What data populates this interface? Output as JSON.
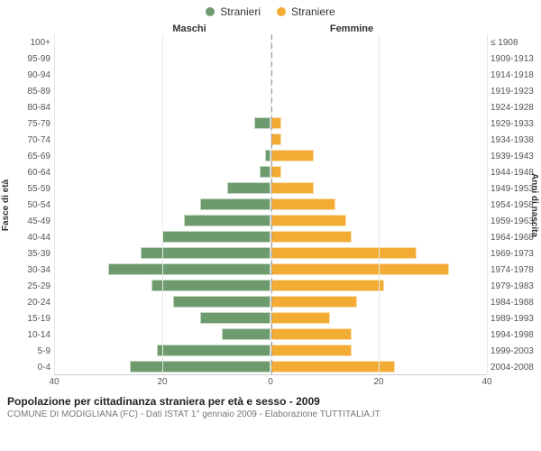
{
  "legend": {
    "male": {
      "label": "Stranieri",
      "color": "#6d9b6d"
    },
    "female": {
      "label": "Straniere",
      "color": "#f2ac33"
    }
  },
  "headers": {
    "left": "Maschi",
    "right": "Femmine"
  },
  "axis_labels": {
    "left": "Fasce di età",
    "right": "Anni di nascita"
  },
  "xaxis": {
    "max": 40,
    "ticks": [
      40,
      20,
      0,
      20,
      40
    ]
  },
  "title": "Popolazione per cittadinanza straniera per età e sesso - 2009",
  "subtitle": "COMUNE DI MODIGLIANA (FC) - Dati ISTAT 1° gennaio 2009 - Elaborazione TUTTITALIA.IT",
  "chart": {
    "type": "population-pyramid",
    "background_color": "#ffffff",
    "grid_color": "#e6e6e6",
    "centerline_color": "#999999",
    "label_fontsize": 10,
    "title_fontsize": 12
  },
  "rows": [
    {
      "age": "100+",
      "birth": "≤ 1908",
      "m": 0,
      "f": 0
    },
    {
      "age": "95-99",
      "birth": "1909-1913",
      "m": 0,
      "f": 0
    },
    {
      "age": "90-94",
      "birth": "1914-1918",
      "m": 0,
      "f": 0
    },
    {
      "age": "85-89",
      "birth": "1919-1923",
      "m": 0,
      "f": 0
    },
    {
      "age": "80-84",
      "birth": "1924-1928",
      "m": 0,
      "f": 0
    },
    {
      "age": "75-79",
      "birth": "1929-1933",
      "m": 3,
      "f": 2
    },
    {
      "age": "70-74",
      "birth": "1934-1938",
      "m": 0,
      "f": 2
    },
    {
      "age": "65-69",
      "birth": "1939-1943",
      "m": 1,
      "f": 8
    },
    {
      "age": "60-64",
      "birth": "1944-1948",
      "m": 2,
      "f": 2
    },
    {
      "age": "55-59",
      "birth": "1949-1953",
      "m": 8,
      "f": 8
    },
    {
      "age": "50-54",
      "birth": "1954-1958",
      "m": 13,
      "f": 12
    },
    {
      "age": "45-49",
      "birth": "1959-1963",
      "m": 16,
      "f": 14
    },
    {
      "age": "40-44",
      "birth": "1964-1968",
      "m": 20,
      "f": 15
    },
    {
      "age": "35-39",
      "birth": "1969-1973",
      "m": 24,
      "f": 27
    },
    {
      "age": "30-34",
      "birth": "1974-1978",
      "m": 30,
      "f": 33
    },
    {
      "age": "25-29",
      "birth": "1979-1983",
      "m": 22,
      "f": 21
    },
    {
      "age": "20-24",
      "birth": "1984-1988",
      "m": 18,
      "f": 16
    },
    {
      "age": "15-19",
      "birth": "1989-1993",
      "m": 13,
      "f": 11
    },
    {
      "age": "10-14",
      "birth": "1994-1998",
      "m": 9,
      "f": 15
    },
    {
      "age": "5-9",
      "birth": "1999-2003",
      "m": 21,
      "f": 15
    },
    {
      "age": "0-4",
      "birth": "2004-2008",
      "m": 26,
      "f": 23
    }
  ]
}
